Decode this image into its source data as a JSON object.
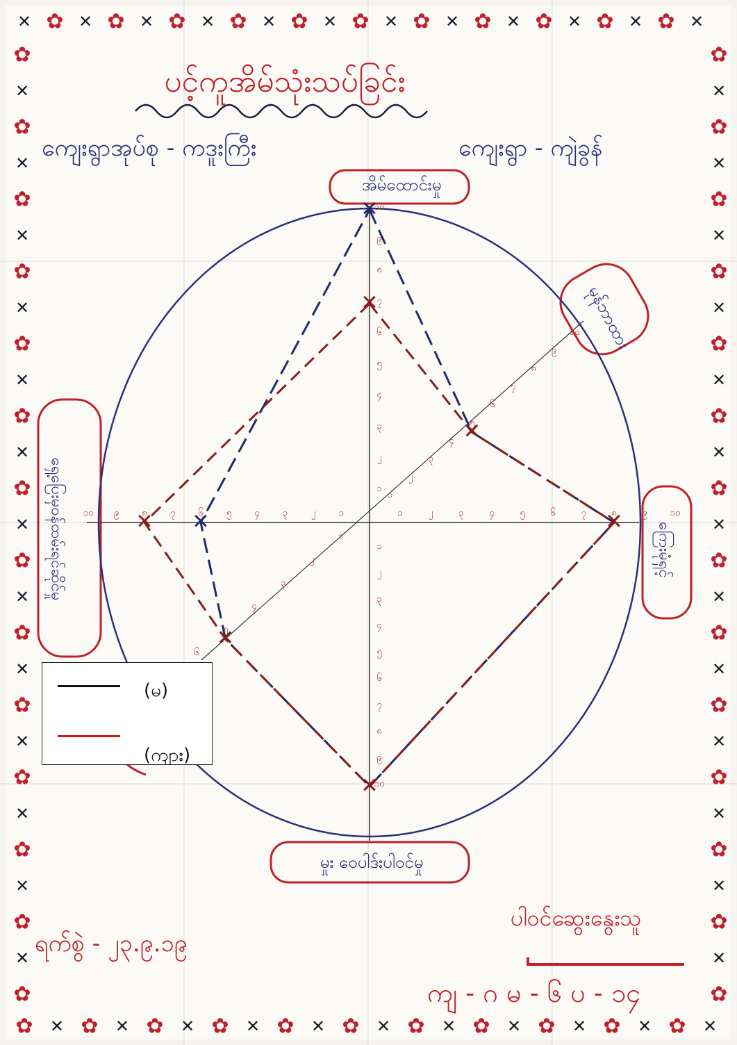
{
  "title": "ပင့်ကူအိမ်သုံးသပ်ခြင်း",
  "village_tract": "ကျေးရွာအုပ်စု - ကဒူးကြီး",
  "village": "ကျေးရွာ - ကျဲခွန်",
  "axes": {
    "top": "အိမ်ထောင်းမှု",
    "top_right": "မုန်ဘာထား",
    "right": "ကြေးမုံရှင့်",
    "left": "ရှေ့ပြေးမှဝန်ထမ်းရင်ဆိုင်မှု",
    "bottom": "မှုး ဝေပါဒ်းပါဝင်မှု"
  },
  "date": "ရက်စွဲ - ၂၃.၉.၁၉",
  "facilitator": "ပါဝင်ဆွေးနွေးသူ",
  "code": "ကျ - ဂ မ - ၆ ပ - ၁၄",
  "legend": {
    "male": "(မ)",
    "female": "(ကျား)",
    "male_color": "#111111",
    "female_color": "#e01010"
  },
  "colors": {
    "ink_blue": "#2b2f7a",
    "ink_red": "#c0202a"
  },
  "scores": {
    "male": {
      "top": 10,
      "top_right": 5,
      "right": 8,
      "bottom": 10,
      "bottom_left": 5,
      "left": 6
    },
    "female": {
      "top": 7,
      "top_right": 5,
      "right": 8,
      "bottom": 10,
      "bottom_left": 5,
      "left": 8
    }
  }
}
